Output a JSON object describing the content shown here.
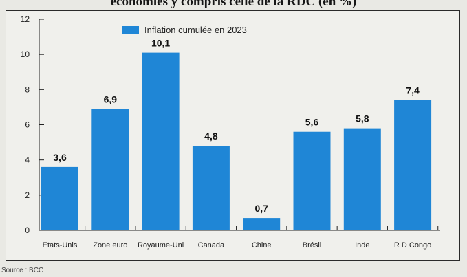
{
  "page": {
    "title": "économies y compris celle de la RDC (en %)",
    "source": "Source : BCC"
  },
  "chart_data": {
    "type": "bar",
    "categories": [
      "Etats-Unis",
      "Zone euro",
      "Royaume-Uni",
      "Canada",
      "Chine",
      "Brésil",
      "Inde",
      "R D Congo"
    ],
    "series": [
      {
        "name": "Inflation cumulée en 2023",
        "values": [
          3.6,
          6.9,
          10.1,
          4.8,
          0.7,
          5.6,
          5.8,
          7.4
        ],
        "labels": [
          "3,6",
          "6,9",
          "10,1",
          "4,8",
          "0,7",
          "5,6",
          "5,8",
          "7,4"
        ],
        "color": "#1f86d6"
      }
    ],
    "yticks": [
      "0",
      "2",
      "4",
      "6",
      "8",
      "10",
      "12"
    ],
    "ylim": [
      0,
      12
    ],
    "legend_position": "top-left",
    "grid": false
  }
}
